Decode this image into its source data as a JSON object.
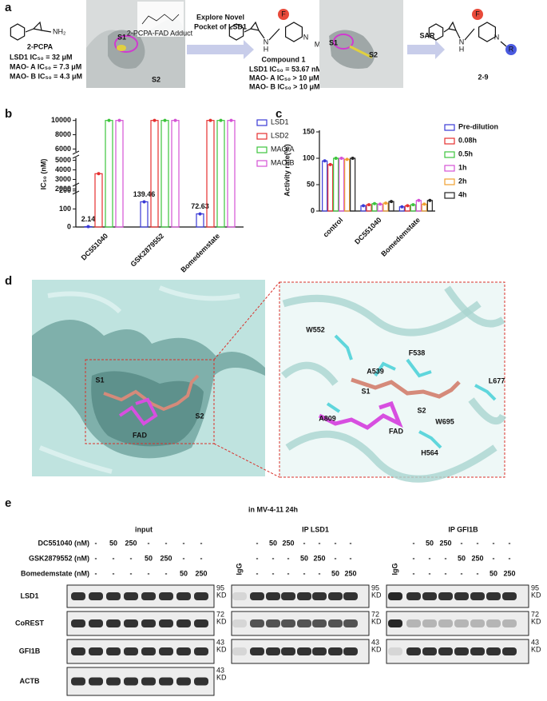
{
  "panel_a": {
    "label": "a",
    "compound_2pcpa": {
      "name": "2-PCPA",
      "atoms": [
        "NH₂"
      ],
      "activity": [
        "LSD1 IC₅₀ = 32 μM",
        "MAO- A IC₅₀ = 7.3 μM",
        "MAO- B IC₅₀ = 4.3 μM"
      ]
    },
    "pocket1": {
      "labels": [
        "S1",
        "S2"
      ],
      "caption": "2-PCPA-FAD Adduct"
    },
    "arrow1": [
      "Explore Novel",
      "Pocket of LSD1"
    ],
    "compound1": {
      "name": "Compound 1",
      "atoms": [
        "N",
        "H",
        "F",
        "N",
        "Me"
      ],
      "activity": [
        "LSD1 IC₅₀ = 53.67 nM",
        "MAO- A IC₅₀ > 10 μM",
        "MAO- B IC₅₀ > 10 μM"
      ]
    },
    "pocket2": {
      "labels": [
        "S1",
        "S2"
      ]
    },
    "arrow2": "SAR",
    "series": {
      "name": "2-9",
      "atoms": [
        "N",
        "H",
        "F",
        "N",
        "R"
      ]
    }
  },
  "chart_data": [
    {
      "panel_label": "b",
      "type": "bar",
      "y_label": "IC₅₀ (nM)",
      "categories": [
        "DC551040",
        "GSK2879552",
        "Bomedemstate"
      ],
      "series": [
        {
          "name": "LSD1",
          "color": "#3a3ad6",
          "values": [
            2.14,
            139.46,
            72.63
          ],
          "data_labels": true
        },
        {
          "name": "LSD2",
          "color": "#e53030",
          "values": [
            3600,
            10000,
            10000
          ]
        },
        {
          "name": "MAO-A",
          "color": "#3cc43c",
          "values": [
            10000,
            10000,
            10000
          ]
        },
        {
          "name": "MAO-B",
          "color": "#d452d4",
          "values": [
            10000,
            10000,
            10000
          ]
        }
      ],
      "y_segments": [
        {
          "ylim": [
            0,
            230
          ],
          "yticks": [
            0,
            100,
            200
          ]
        },
        {
          "ylim": [
            1700,
            5300
          ],
          "yticks": [
            2000,
            3000,
            4000,
            5000
          ]
        },
        {
          "ylim": [
            5600,
            10300
          ],
          "yticks": [
            6000,
            8000,
            10000
          ]
        }
      ],
      "legend": "right"
    },
    {
      "panel_label": "c",
      "type": "bar",
      "y_label": "Activity rate(%)",
      "categories": [
        "control",
        "DC551040",
        "Bomedemstate"
      ],
      "series": [
        {
          "name": "Pre-dilution",
          "color": "#3a3ad6",
          "values": [
            95,
            10,
            8
          ]
        },
        {
          "name": "0.08h",
          "color": "#e53030",
          "values": [
            88,
            12,
            10
          ]
        },
        {
          "name": "0.5h",
          "color": "#3cc43c",
          "values": [
            100,
            14,
            12
          ]
        },
        {
          "name": "1h",
          "color": "#d452d4",
          "values": [
            100,
            13,
            20
          ]
        },
        {
          "name": "2h",
          "color": "#f0a030",
          "values": [
            98,
            15,
            13
          ]
        },
        {
          "name": "4h",
          "color": "#222222",
          "values": [
            100,
            18,
            20
          ]
        }
      ],
      "ylim": [
        0,
        150
      ],
      "yticks": [
        0,
        50,
        100,
        150
      ],
      "legend": "right"
    }
  ],
  "panel_d": {
    "label": "d",
    "left_labels": [
      "S1",
      "S2",
      "FAD"
    ],
    "right_labels": [
      "W552",
      "F538",
      "A539",
      "L677",
      "S1",
      "A809",
      "W695",
      "S2",
      "FAD",
      "H564"
    ]
  },
  "panel_e": {
    "label": "e",
    "title": "in MV-4-11 24h",
    "treatment_rows": [
      "DC551040 (nM)",
      "GSK2879552 (nM)",
      "Bomedemstate (nM)"
    ],
    "blocks": [
      {
        "title": "input",
        "treatments": [
          [
            "-",
            "50",
            "250",
            "-",
            "-",
            "-",
            "-"
          ],
          [
            "-",
            "-",
            "-",
            "50",
            "250",
            "-",
            "-"
          ],
          [
            "-",
            "-",
            "-",
            "-",
            "-",
            "50",
            "250"
          ]
        ]
      },
      {
        "title": "IP LSD1",
        "control_lane": "IgG",
        "treatments": [
          [
            "-",
            "50",
            "250",
            "-",
            "-",
            "-",
            "-"
          ],
          [
            "-",
            "-",
            "-",
            "50",
            "250",
            "-",
            "-"
          ],
          [
            "-",
            "-",
            "-",
            "-",
            "-",
            "50",
            "250"
          ]
        ]
      },
      {
        "title": "IP GFI1B",
        "control_lane": "IgG",
        "treatments": [
          [
            "-",
            "50",
            "250",
            "-",
            "-",
            "-",
            "-"
          ],
          [
            "-",
            "-",
            "-",
            "50",
            "250",
            "-",
            "-"
          ],
          [
            "-",
            "-",
            "-",
            "-",
            "-",
            "50",
            "250"
          ]
        ]
      }
    ],
    "proteins": [
      "LSD1",
      "CoREST",
      "GFI1B",
      "ACTB"
    ],
    "markers": [
      {
        "value": "95",
        "unit": "KD"
      },
      {
        "value": "72",
        "unit": "KD"
      },
      {
        "value": "43",
        "unit": "KD"
      },
      {
        "value": "43",
        "unit": "KD"
      }
    ]
  }
}
